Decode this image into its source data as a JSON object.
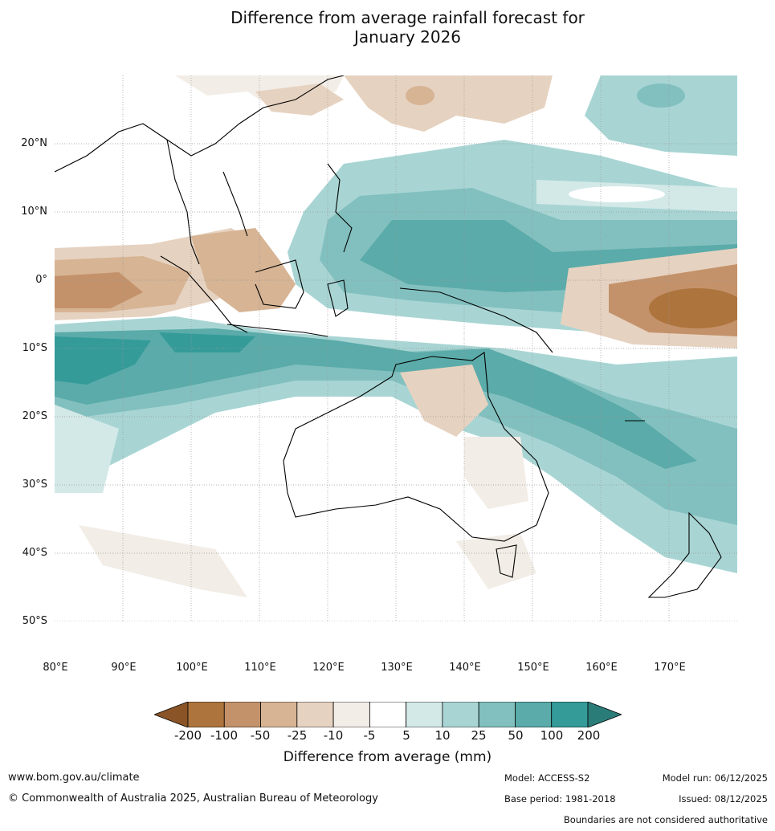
{
  "title": {
    "line1": "Difference from average rainfall forecast for",
    "line2": "January 2026"
  },
  "axes": {
    "lat_labels": [
      "20°N",
      "10°N",
      "0°",
      "10°S",
      "20°S",
      "30°S",
      "40°S",
      "50°S"
    ],
    "lon_labels": [
      "80°E",
      "90°E",
      "100°E",
      "110°E",
      "120°E",
      "130°E",
      "140°E",
      "150°E",
      "160°E",
      "170°E"
    ],
    "lat_values": [
      20,
      10,
      0,
      -10,
      -20,
      -30,
      -40,
      -50
    ],
    "lon_values": [
      80,
      90,
      100,
      110,
      120,
      130,
      140,
      150,
      160,
      170
    ],
    "lat_range": [
      -55,
      30
    ],
    "lon_range": [
      80,
      180
    ]
  },
  "legend": {
    "ticks": [
      "-200",
      "-100",
      "-50",
      "-25",
      "-10",
      "-5",
      "5",
      "10",
      "25",
      "50",
      "100",
      "200"
    ],
    "colors": [
      "#8a5427",
      "#ad743d",
      "#c4926a",
      "#d6b494",
      "#e6d2c0",
      "#f2ede6",
      "#ffffff",
      "#d3e9e8",
      "#a8d5d4",
      "#82c0bf",
      "#5aaba9",
      "#349b99",
      "#2a7c79"
    ],
    "label": "Difference from average (mm)"
  },
  "footer": {
    "url": "www.bom.gov.au/climate",
    "copyright": "© Commonwealth of Australia 2025, Australian Bureau of Meteorology",
    "model": "Model: ACCESS-S2",
    "base_period": "Base period: 1981-2018",
    "model_run": "Model run: 06/12/2025",
    "issued": "Issued: 08/12/2025",
    "disclaimer": "Boundaries are not considered authoritative"
  }
}
